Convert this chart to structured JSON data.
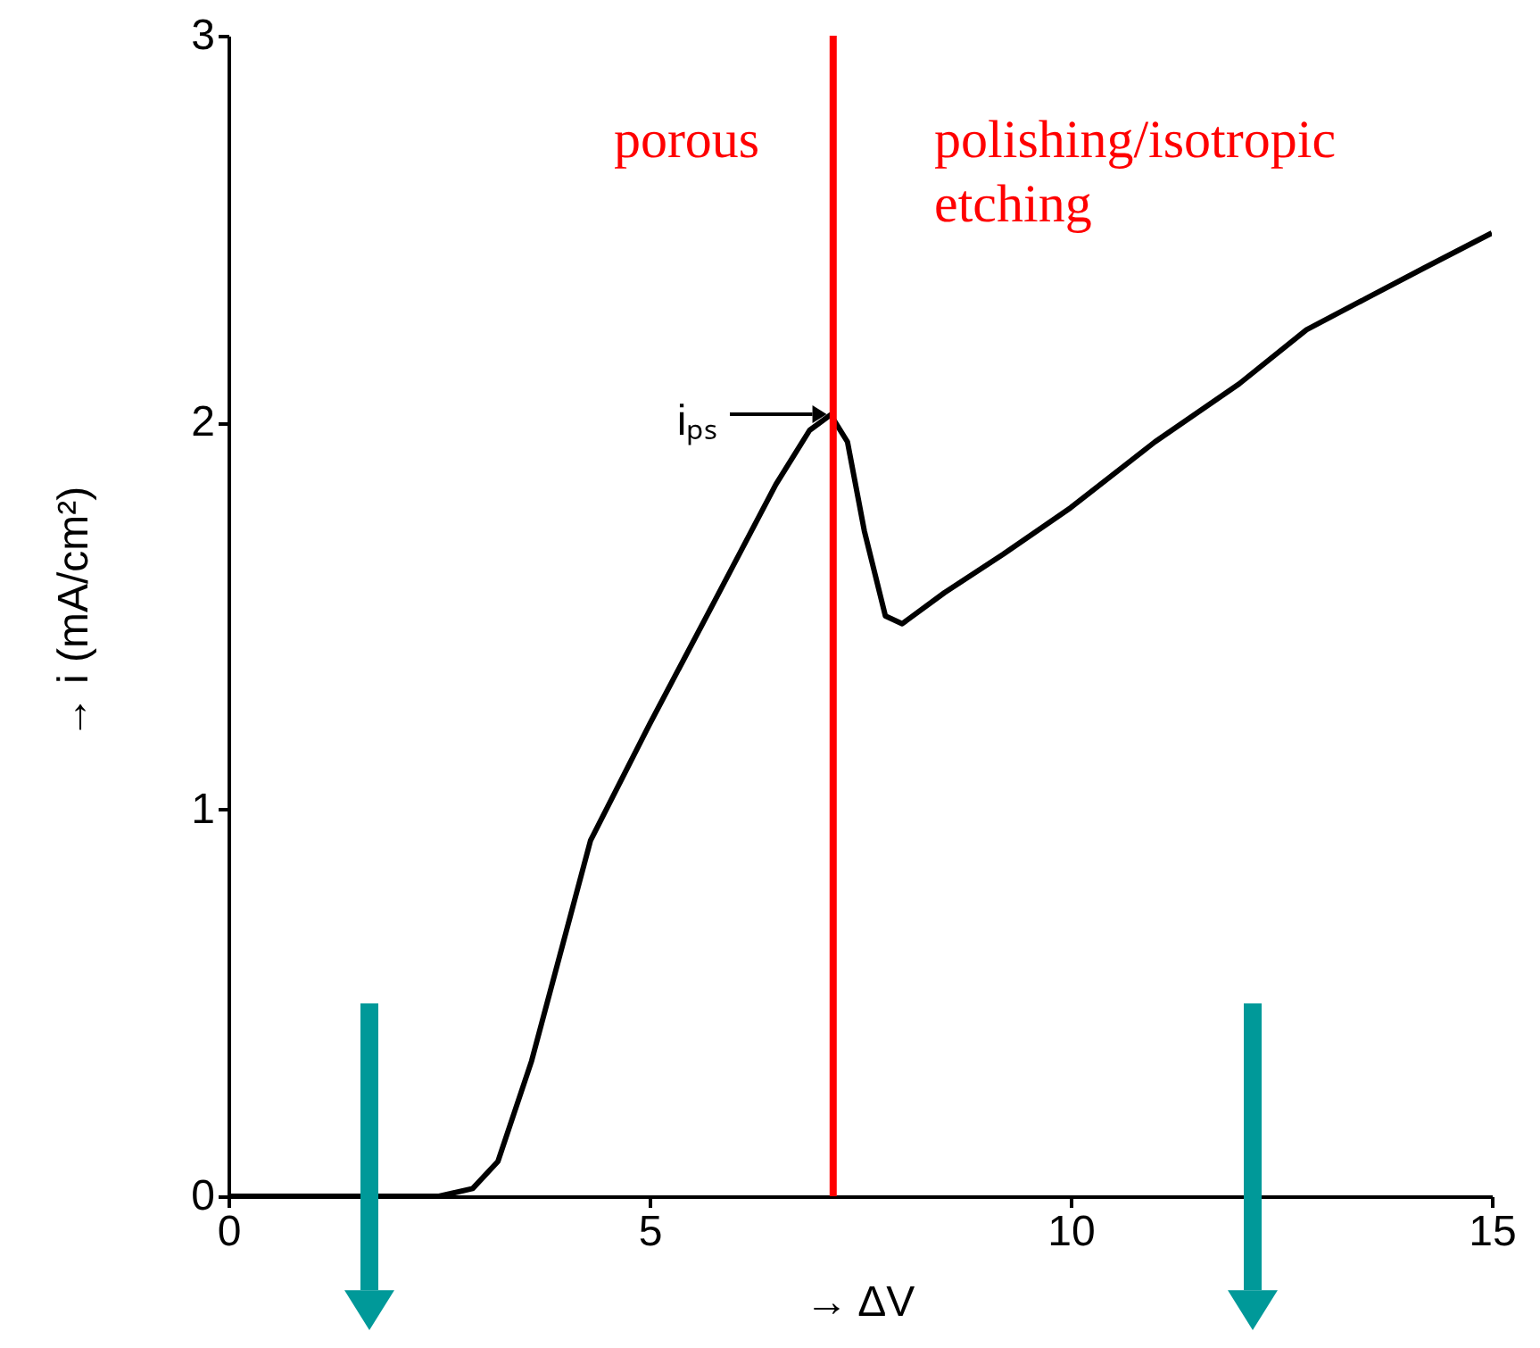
{
  "chart_data": {
    "type": "line",
    "xlabel": "→ ΔV",
    "ylabel": "→ i  (mA/cm²)",
    "x": [
      0,
      2.5,
      2.9,
      3.2,
      3.6,
      4.3,
      5.0,
      5.8,
      6.5,
      6.9,
      7.15,
      7.35,
      7.55,
      7.8,
      8.0,
      8.5,
      9.2,
      10.0,
      11.0,
      12.0,
      12.8,
      13.5,
      14.2,
      15.0
    ],
    "series": [
      {
        "color": "#000000",
        "values": [
          0,
          0,
          0.02,
          0.09,
          0.35,
          0.92,
          1.22,
          1.55,
          1.84,
          1.98,
          2.02,
          1.95,
          1.72,
          1.5,
          1.48,
          1.56,
          1.66,
          1.78,
          1.95,
          2.1,
          2.24,
          2.32,
          2.4,
          2.49
        ]
      }
    ],
    "xlim": [
      0,
      15
    ],
    "ylim": [
      0,
      3
    ],
    "xticks": [
      0,
      5,
      10,
      15
    ],
    "yticks": [
      0,
      1,
      2,
      3
    ],
    "grid": false,
    "marker": "none",
    "line_style": "solid",
    "ref_lines": [
      {
        "axis": "x",
        "value": 7.18,
        "color": "#ff0000"
      }
    ],
    "annotations": [
      "porous",
      "polishing/isotropic etching",
      {
        "text": "iₚₛ",
        "x": 7.15,
        "y": 2.02
      }
    ]
  }
}
